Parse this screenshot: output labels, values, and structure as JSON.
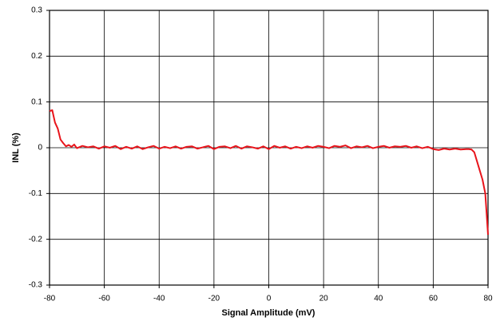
{
  "chart_data": {
    "type": "line",
    "x_label": "Signal Amplitude (mV)",
    "y_label": "INL (%)",
    "x": [
      -80,
      -79,
      -78,
      -77,
      -76,
      -75,
      -74,
      -73,
      -72,
      -71,
      -70,
      -68,
      -66,
      -64,
      -62,
      -60,
      -58,
      -56,
      -54,
      -52,
      -50,
      -48,
      -46,
      -44,
      -42,
      -40,
      -38,
      -36,
      -34,
      -32,
      -30,
      -28,
      -26,
      -24,
      -22,
      -20,
      -18,
      -16,
      -14,
      -12,
      -10,
      -8,
      -6,
      -4,
      -2,
      0,
      2,
      4,
      6,
      8,
      10,
      12,
      14,
      16,
      18,
      20,
      22,
      24,
      26,
      28,
      30,
      32,
      34,
      36,
      38,
      40,
      42,
      44,
      46,
      48,
      50,
      52,
      54,
      56,
      58,
      60,
      62,
      64,
      66,
      68,
      70,
      72,
      73,
      74,
      75,
      76,
      77,
      78,
      79,
      80
    ],
    "values": [
      0.08,
      0.082,
      0.055,
      0.042,
      0.018,
      0.01,
      0.003,
      0.006,
      0.002,
      0.007,
      -0.001,
      0.004,
      0.001,
      0.003,
      -0.002,
      0.003,
      0.0,
      0.004,
      -0.003,
      0.002,
      -0.002,
      0.003,
      -0.003,
      0.001,
      0.004,
      -0.002,
      0.002,
      -0.001,
      0.003,
      -0.002,
      0.002,
      0.003,
      -0.002,
      0.001,
      0.004,
      -0.003,
      0.002,
      0.003,
      -0.001,
      0.004,
      -0.002,
      0.003,
      0.001,
      -0.002,
      0.003,
      -0.003,
      0.004,
      0.0,
      0.003,
      -0.002,
      0.002,
      -0.001,
      0.003,
      0.0,
      0.004,
      0.002,
      -0.001,
      0.004,
      0.002,
      0.005,
      -0.001,
      0.003,
      0.001,
      0.004,
      -0.001,
      0.002,
      0.004,
      0.0,
      0.003,
      0.002,
      0.004,
      0.0,
      0.003,
      -0.001,
      0.002,
      -0.003,
      -0.005,
      -0.002,
      -0.004,
      -0.002,
      -0.004,
      -0.003,
      -0.003,
      -0.004,
      -0.01,
      -0.03,
      -0.05,
      -0.07,
      -0.1,
      -0.19
    ],
    "color": "#e8141b",
    "xlim": [
      -80,
      80
    ],
    "xticks": [
      -80,
      -60,
      -40,
      -20,
      0,
      20,
      40,
      60,
      80
    ],
    "ylim": [
      -0.3,
      0.3
    ],
    "yticks": [
      -0.3,
      -0.2,
      -0.1,
      0,
      0.1,
      0.2,
      0.3
    ],
    "grid": true
  }
}
